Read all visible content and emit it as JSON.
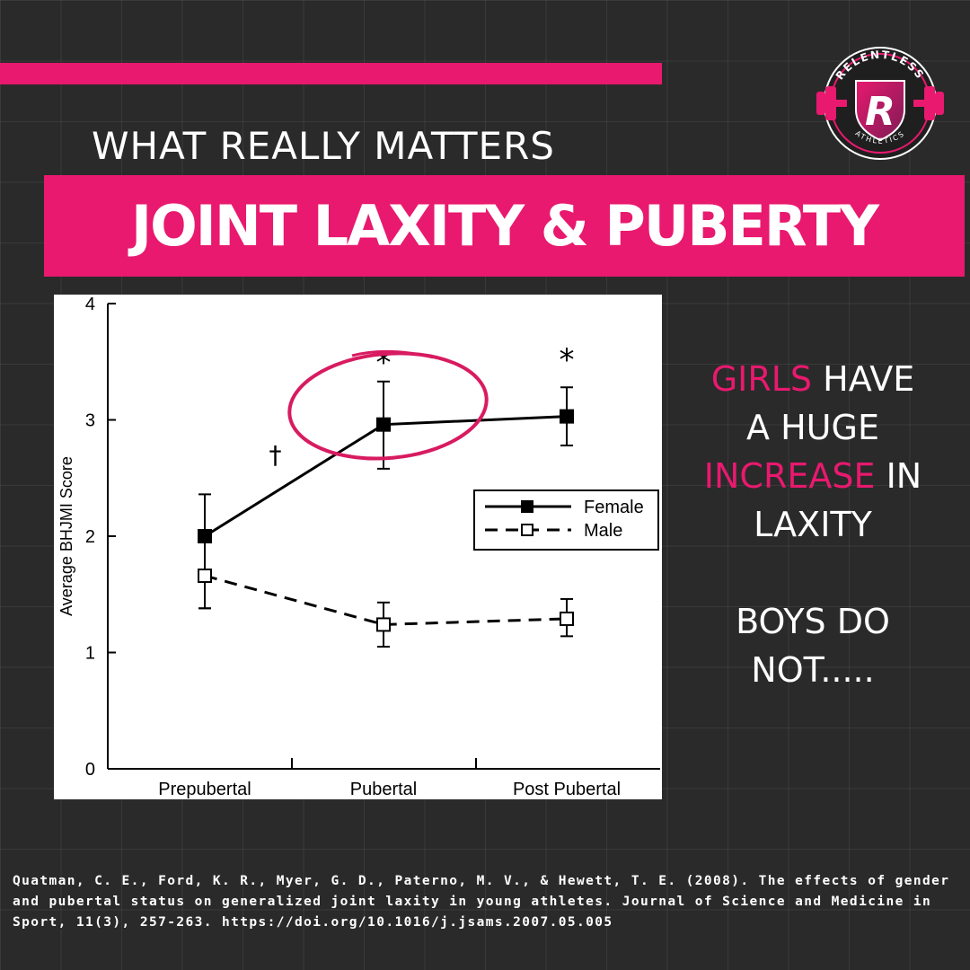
{
  "header": {
    "subtitle": "WHAT REALLY MATTERS",
    "title": "JOINT LAXITY & PUBERTY"
  },
  "logo": {
    "top_text": "RELENTLESS",
    "bottom_text": "ATHLETICS",
    "letter": "R",
    "accent_color": "#e8196e"
  },
  "callout": {
    "line1_highlight": "GIRLS",
    "line1_rest": " HAVE",
    "line2": "A HUGE",
    "line3_highlight": "INCREASE",
    "line3_rest": " IN",
    "line4": "LAXITY",
    "line5": "BOYS DO",
    "line6": "NOT....."
  },
  "citation": "Quatman, C. E., Ford, K. R., Myer, G. D., Paterno, M. V., & Hewett, T. E. (2008). The effects of gender and pubertal status on generalized joint laxity in young athletes. Journal of Science and Medicine in Sport, 11(3), 257-263. https://doi.org/10.1016/j.jsams.2007.05.005",
  "chart_data": {
    "type": "line",
    "ylabel": "Average BHJMI Score",
    "xlabel": "",
    "ylim": [
      0,
      4
    ],
    "yticks": [
      0,
      1,
      2,
      3,
      4
    ],
    "categories": [
      "Prepubertal",
      "Pubertal",
      "Post Pubertal"
    ],
    "series": [
      {
        "name": "Female",
        "values": [
          2.0,
          2.96,
          3.03
        ],
        "error_low": [
          1.38,
          2.58,
          2.78
        ],
        "error_high": [
          2.36,
          3.33,
          3.28
        ],
        "line_style": "solid",
        "marker": "filled-square"
      },
      {
        "name": "Male",
        "values": [
          1.66,
          1.24,
          1.29
        ],
        "error_low": [
          1.38,
          1.05,
          1.14
        ],
        "error_high": [
          1.66,
          1.43,
          1.46
        ],
        "line_style": "dashed",
        "marker": "open-square"
      }
    ],
    "annotations": [
      {
        "text": "*",
        "category": "Pubertal",
        "y": 3.5
      },
      {
        "text": "*",
        "category": "Post Pubertal",
        "y": 3.52
      },
      {
        "text": "†",
        "between": [
          "Prepubertal",
          "Pubertal"
        ],
        "y": 2.72
      }
    ],
    "highlight": {
      "category": "Pubertal",
      "y": 3.12,
      "color": "#d81b60"
    },
    "legend_position": "right"
  }
}
